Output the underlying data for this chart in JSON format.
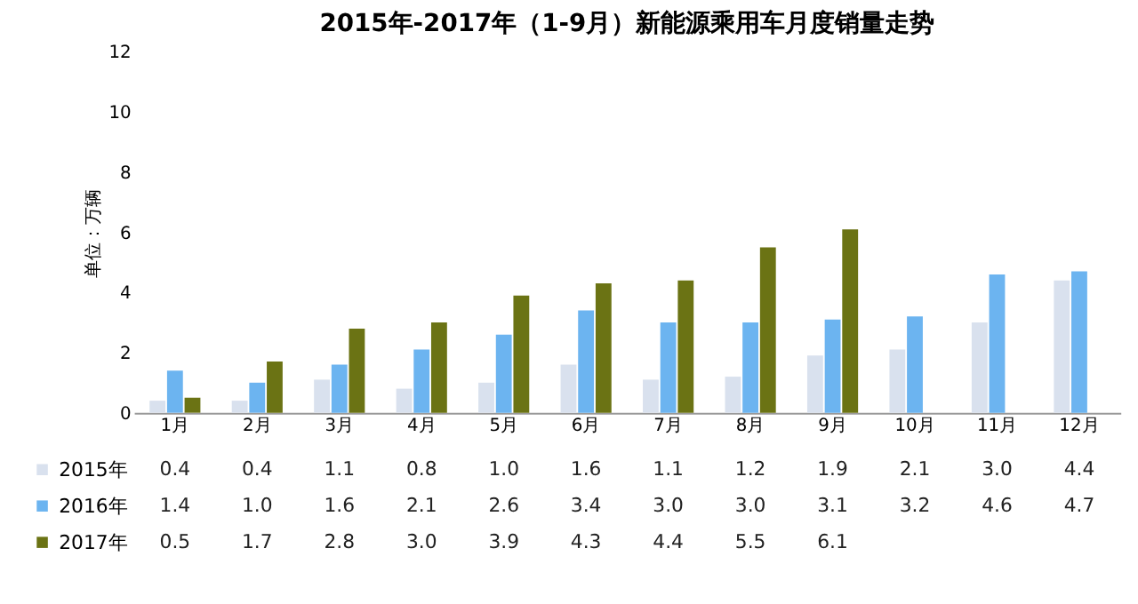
{
  "chart_data": {
    "type": "bar",
    "title": "2015年-2017年（1-9月）新能源乘用车月度销量走势",
    "ylabel": "单位：万辆",
    "categories": [
      "1月",
      "2月",
      "3月",
      "4月",
      "5月",
      "6月",
      "7月",
      "8月",
      "9月",
      "10月",
      "11月",
      "12月"
    ],
    "series": [
      {
        "name": "2015年",
        "color": "#d9e1ee",
        "values": [
          0.4,
          0.4,
          1.1,
          0.8,
          1.0,
          1.6,
          1.1,
          1.2,
          1.9,
          2.1,
          3.0,
          4.4
        ],
        "value_labels": [
          "0.4",
          "0.4",
          "1.1",
          "0.8",
          "1.0",
          "1.6",
          "1.1",
          "1.2",
          "1.9",
          "2.1",
          "3.0",
          "4.4"
        ]
      },
      {
        "name": "2016年",
        "color": "#6cb4f0",
        "values": [
          1.4,
          1.0,
          1.6,
          2.1,
          2.6,
          3.4,
          3.0,
          3.0,
          3.1,
          3.2,
          4.6,
          4.7
        ],
        "value_labels": [
          "1.4",
          "1.0",
          "1.6",
          "2.1",
          "2.6",
          "3.4",
          "3.0",
          "3.0",
          "3.1",
          "3.2",
          "4.6",
          "4.7"
        ]
      },
      {
        "name": "2017年",
        "color": "#6b7314",
        "values": [
          0.5,
          1.7,
          2.8,
          3.0,
          3.9,
          4.3,
          4.4,
          5.5,
          6.1,
          null,
          null,
          null
        ],
        "value_labels": [
          "0.5",
          "1.7",
          "2.8",
          "3.0",
          "3.9",
          "4.3",
          "4.4",
          "5.5",
          "6.1",
          null,
          null,
          null
        ]
      }
    ],
    "ylim": [
      0,
      12
    ],
    "yticks": [
      0,
      2,
      4,
      6,
      8,
      10,
      12
    ],
    "grid": false,
    "legend": "bottom"
  }
}
